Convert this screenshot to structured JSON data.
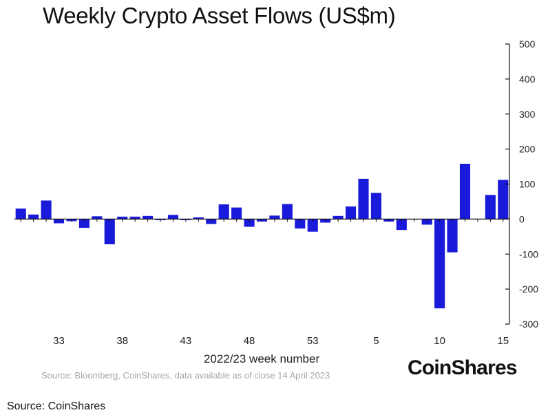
{
  "title": "Weekly Crypto Asset Flows (US$m)",
  "source_note": "Source: Bloomberg, CoinShares, data available as of close 14 April 2023",
  "brand": "CoinShares",
  "footer": "Source: CoinShares",
  "colors": {
    "bar": "#1a1adb",
    "axis": "#111111",
    "text": "#222222"
  },
  "chart_data": {
    "type": "bar",
    "title": "Weekly Crypto Asset Flows (US$m)",
    "xlabel": "2022/23 week number",
    "ylabel": "",
    "ylim": [
      -300,
      500
    ],
    "yticks": [
      500,
      400,
      300,
      200,
      100,
      0,
      -100,
      -200,
      -300
    ],
    "yaxis_position": "right",
    "grid": false,
    "legend": "none",
    "categories": [
      "30",
      "31",
      "32",
      "33",
      "34",
      "35",
      "36",
      "37",
      "38",
      "39",
      "40",
      "41",
      "42",
      "43",
      "44",
      "45",
      "46",
      "47",
      "48",
      "49",
      "50",
      "51",
      "52",
      "53",
      "1",
      "2",
      "3",
      "4",
      "5",
      "6",
      "7",
      "8",
      "9",
      "10",
      "11",
      "12",
      "13",
      "14",
      "15"
    ],
    "tick_labels": [
      "",
      "",
      "",
      "33",
      "",
      "",
      "",
      "",
      "38",
      "",
      "",
      "",
      "",
      "43",
      "",
      "",
      "",
      "",
      "48",
      "",
      "",
      "",
      "",
      "53",
      "",
      "",
      "",
      "",
      "5",
      "",
      "",
      "",
      "",
      "10",
      "",
      "",
      "",
      "",
      "15"
    ],
    "values": [
      30,
      13,
      53,
      -12,
      -6,
      -25,
      8,
      -72,
      7,
      7,
      9,
      -3,
      12,
      -3,
      5,
      -14,
      42,
      33,
      -22,
      -7,
      10,
      43,
      -27,
      -36,
      -10,
      9,
      36,
      115,
      75,
      -7,
      -31,
      0,
      -16,
      -255,
      -95,
      158,
      1,
      69,
      112
    ]
  }
}
